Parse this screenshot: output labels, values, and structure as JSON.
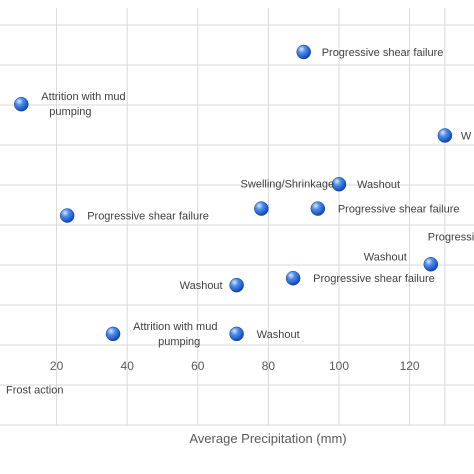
{
  "chart_data": {
    "type": "scatter",
    "title": "",
    "xlabel": "Average Precipitation  (mm)",
    "ylabel": "",
    "xlim": [
      0,
      140
    ],
    "ylim": [
      0,
      11
    ],
    "x_ticks": [
      20,
      40,
      60,
      80,
      100,
      120
    ],
    "grid": true,
    "legend": "none",
    "marker_color": "#1f5fd6",
    "points": [
      {
        "x": 90,
        "y": 10,
        "label": "Progressive shear failure"
      },
      {
        "x": 10,
        "y": 8.5,
        "label": "Attrition with mud pumping"
      },
      {
        "x": 130,
        "y": 7.6,
        "label": "W"
      },
      {
        "x": 100,
        "y": 6.2,
        "label": "Washout"
      },
      {
        "x": 78,
        "y": 5.5,
        "label": "Swelling/Shrinkage"
      },
      {
        "x": 94,
        "y": 5.5,
        "label": "Progressive shear failure"
      },
      {
        "x": 23,
        "y": 5.3,
        "label": "Progressive shear failure"
      },
      {
        "x": 126,
        "y": 3.9,
        "label": "Washout"
      },
      {
        "x": 126,
        "y": 3.9,
        "label": "Progressive"
      },
      {
        "x": 87,
        "y": 3.5,
        "label": "Progressive shear failure"
      },
      {
        "x": 71,
        "y": 3.3,
        "label": "Washout"
      },
      {
        "x": 36,
        "y": 1.9,
        "label": "Attrition with mud pumping"
      },
      {
        "x": 71,
        "y": 1.9,
        "label": "Washout"
      },
      {
        "x": 0,
        "y": 0.3,
        "label": "Frost action"
      }
    ]
  }
}
